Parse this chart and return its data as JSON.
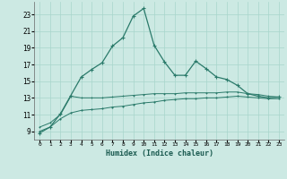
{
  "xlabel": "Humidex (Indice chaleur)",
  "ylabel": "",
  "bg_color": "#cce9e3",
  "grid_color": "#a8d5cc",
  "line_color": "#2a7a6a",
  "xlim": [
    -0.5,
    23.5
  ],
  "ylim": [
    8.0,
    24.5
  ],
  "yticks": [
    9,
    11,
    13,
    15,
    17,
    19,
    21,
    23
  ],
  "xticks": [
    0,
    1,
    2,
    3,
    4,
    5,
    6,
    7,
    8,
    9,
    10,
    11,
    12,
    13,
    14,
    15,
    16,
    17,
    18,
    19,
    20,
    21,
    22,
    23
  ],
  "line1_x": [
    0,
    1,
    2,
    3,
    4,
    5,
    6,
    7,
    8,
    9,
    10,
    11,
    12,
    13,
    14,
    15,
    16,
    17,
    18,
    19,
    20,
    21,
    22,
    23
  ],
  "line1_y": [
    8.8,
    9.5,
    11.1,
    13.3,
    15.5,
    16.4,
    17.2,
    19.2,
    20.2,
    22.8,
    23.7,
    19.3,
    17.3,
    15.7,
    15.7,
    17.4,
    16.5,
    15.5,
    15.2,
    14.5,
    13.5,
    13.2,
    13.0,
    13.1
  ],
  "line2_x": [
    0,
    1,
    2,
    3,
    4,
    5,
    6,
    7,
    8,
    9,
    10,
    11,
    12,
    13,
    14,
    15,
    16,
    17,
    18,
    19,
    20,
    21,
    22,
    23
  ],
  "line2_y": [
    9.5,
    10.0,
    11.0,
    13.2,
    13.0,
    13.0,
    13.0,
    13.1,
    13.2,
    13.3,
    13.4,
    13.5,
    13.5,
    13.5,
    13.6,
    13.6,
    13.6,
    13.6,
    13.7,
    13.7,
    13.5,
    13.4,
    13.2,
    13.1
  ],
  "line3_x": [
    0,
    1,
    2,
    3,
    4,
    5,
    6,
    7,
    8,
    9,
    10,
    11,
    12,
    13,
    14,
    15,
    16,
    17,
    18,
    19,
    20,
    21,
    22,
    23
  ],
  "line3_y": [
    9.0,
    9.5,
    10.5,
    11.2,
    11.5,
    11.6,
    11.7,
    11.9,
    12.0,
    12.2,
    12.4,
    12.5,
    12.7,
    12.8,
    12.9,
    12.9,
    13.0,
    13.0,
    13.1,
    13.2,
    13.1,
    13.0,
    12.9,
    12.9
  ]
}
